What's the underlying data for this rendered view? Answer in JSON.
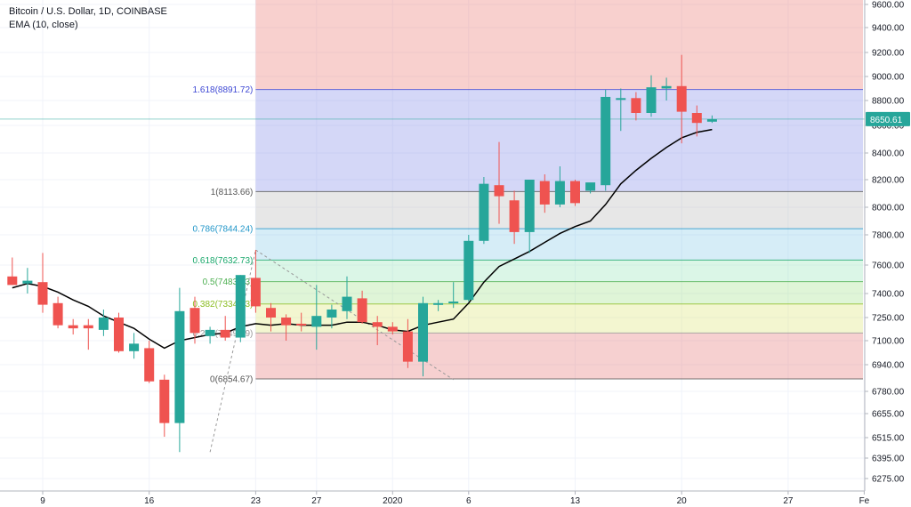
{
  "header": {
    "symbol": "Bitcoin / U.S. Dollar, 1D, COINBASE",
    "indicator": "EMA (10, close)"
  },
  "chart_data": {
    "type": "candlestick",
    "yaxis": {
      "ticks": [
        9600,
        9400,
        9200,
        9000,
        8800,
        8600,
        8400,
        8200,
        8000,
        7800,
        7600,
        7400,
        7250,
        7100,
        6940,
        6780,
        6655,
        6515,
        6395,
        6275
      ],
      "tick_labels": [
        "9600.00",
        "9400.00",
        "9200.00",
        "9000.00",
        "8800.00",
        "8600.00",
        "8400.00",
        "8200.00",
        "8000.00",
        "7800.00",
        "7600.00",
        "7400.00",
        "7250.00",
        "7100.00",
        "6940.00",
        "6780.00",
        "6655.00",
        "6515.00",
        "6395.00",
        "6275.00"
      ]
    },
    "xaxis": {
      "tick_labels": [
        {
          "label": "9",
          "day": 0
        },
        {
          "label": "16",
          "day": 7
        },
        {
          "label": "23",
          "day": 14
        },
        {
          "label": "27",
          "day": 18
        },
        {
          "label": "2020",
          "day": 23
        },
        {
          "label": "6",
          "day": 28
        },
        {
          "label": "13",
          "day": 35
        },
        {
          "label": "20",
          "day": 42
        },
        {
          "label": "27",
          "day": 49
        },
        {
          "label": "Fe",
          "day": 54
        }
      ]
    },
    "candles": [
      {
        "o": 7520,
        "h": 7650,
        "l": 7460,
        "c": 7460
      },
      {
        "o": 7470,
        "h": 7580,
        "l": 7400,
        "c": 7490
      },
      {
        "o": 7480,
        "h": 7680,
        "l": 7280,
        "c": 7330
      },
      {
        "o": 7340,
        "h": 7380,
        "l": 7180,
        "c": 7200
      },
      {
        "o": 7200,
        "h": 7240,
        "l": 7140,
        "c": 7180
      },
      {
        "o": 7200,
        "h": 7240,
        "l": 7040,
        "c": 7180
      },
      {
        "o": 7170,
        "h": 7300,
        "l": 7130,
        "c": 7250
      },
      {
        "o": 7250,
        "h": 7280,
        "l": 7020,
        "c": 7030
      },
      {
        "o": 7030,
        "h": 7150,
        "l": 6980,
        "c": 7080
      },
      {
        "o": 7050,
        "h": 7100,
        "l": 6830,
        "c": 6840
      },
      {
        "o": 6850,
        "h": 6880,
        "l": 6520,
        "c": 6600
      },
      {
        "o": 6600,
        "h": 7440,
        "l": 6430,
        "c": 7290
      },
      {
        "o": 7310,
        "h": 7380,
        "l": 7080,
        "c": 7150
      },
      {
        "o": 7130,
        "h": 7190,
        "l": 7080,
        "c": 7170
      },
      {
        "o": 7170,
        "h": 7260,
        "l": 7100,
        "c": 7120
      },
      {
        "o": 7120,
        "h": 7530,
        "l": 7090,
        "c": 7530
      },
      {
        "o": 7510,
        "h": 7700,
        "l": 7280,
        "c": 7320
      },
      {
        "o": 7310,
        "h": 7340,
        "l": 7160,
        "c": 7250
      },
      {
        "o": 7250,
        "h": 7270,
        "l": 7100,
        "c": 7200
      },
      {
        "o": 7210,
        "h": 7280,
        "l": 7160,
        "c": 7200
      },
      {
        "o": 7190,
        "h": 7460,
        "l": 7040,
        "c": 7260
      },
      {
        "o": 7250,
        "h": 7330,
        "l": 7180,
        "c": 7300
      },
      {
        "o": 7290,
        "h": 7520,
        "l": 7240,
        "c": 7380
      },
      {
        "o": 7370,
        "h": 7420,
        "l": 7210,
        "c": 7220
      },
      {
        "o": 7220,
        "h": 7260,
        "l": 7070,
        "c": 7190
      },
      {
        "o": 7190,
        "h": 7220,
        "l": 7140,
        "c": 7160
      },
      {
        "o": 7160,
        "h": 7240,
        "l": 6920,
        "c": 6960
      },
      {
        "o": 6960,
        "h": 7380,
        "l": 6870,
        "c": 7340
      },
      {
        "o": 7330,
        "h": 7360,
        "l": 7290,
        "c": 7340
      },
      {
        "o": 7340,
        "h": 7480,
        "l": 7310,
        "c": 7350
      },
      {
        "o": 7360,
        "h": 7800,
        "l": 7350,
        "c": 7760
      },
      {
        "o": 7760,
        "h": 8220,
        "l": 7740,
        "c": 8170
      },
      {
        "o": 8160,
        "h": 8480,
        "l": 7880,
        "c": 8080
      },
      {
        "o": 8050,
        "h": 8120,
        "l": 7740,
        "c": 7820
      },
      {
        "o": 7820,
        "h": 8200,
        "l": 7680,
        "c": 8200
      },
      {
        "o": 8190,
        "h": 8240,
        "l": 7960,
        "c": 8020
      },
      {
        "o": 8020,
        "h": 8300,
        "l": 8000,
        "c": 8190
      },
      {
        "o": 8190,
        "h": 8200,
        "l": 8010,
        "c": 8030
      },
      {
        "o": 8120,
        "h": 8170,
        "l": 8100,
        "c": 8180
      },
      {
        "o": 8160,
        "h": 8890,
        "l": 8120,
        "c": 8830
      },
      {
        "o": 8820,
        "h": 8900,
        "l": 8560,
        "c": 8820
      },
      {
        "o": 8820,
        "h": 8870,
        "l": 8640,
        "c": 8700
      },
      {
        "o": 8700,
        "h": 9010,
        "l": 8670,
        "c": 8910
      },
      {
        "o": 8900,
        "h": 8990,
        "l": 8800,
        "c": 8920
      },
      {
        "o": 8920,
        "h": 9180,
        "l": 8470,
        "c": 8710
      },
      {
        "o": 8700,
        "h": 8760,
        "l": 8520,
        "c": 8620
      },
      {
        "o": 8630,
        "h": 8680,
        "l": 8620,
        "c": 8650
      }
    ],
    "ema": [
      7440,
      7470,
      7450,
      7410,
      7360,
      7320,
      7260,
      7220,
      7180,
      7110,
      7050,
      7100,
      7120,
      7140,
      7150,
      7190,
      7210,
      7200,
      7210,
      7200,
      7200,
      7200,
      7220,
      7220,
      7200,
      7170,
      7160,
      7200,
      7220,
      7240,
      7340,
      7480,
      7590,
      7640,
      7690,
      7750,
      7810,
      7860,
      7900,
      8020,
      8170,
      8270,
      8360,
      8440,
      8510,
      8550,
      8570
    ],
    "current_price": 8650.61,
    "current_price_label": "8650.61",
    "fib": {
      "levels": [
        {
          "label": "1.618(8891.72)",
          "value": 8891.72,
          "color": "#3e48d4",
          "fill": "rgba(120,130,230,0.32)"
        },
        {
          "label": "1(8113.66)",
          "value": 8113.66,
          "color": "#555555",
          "fill": "rgba(170,170,170,0.28)"
        },
        {
          "label": "0.786(7844.24)",
          "value": 7844.24,
          "color": "#2196c9",
          "fill": "rgba(120,195,230,0.30)"
        },
        {
          "label": "0.618(7632.73)",
          "value": 7632.73,
          "color": "#1aa86c",
          "fill": "rgba(110,220,160,0.25)"
        },
        {
          "label": "0.5(7483.73)",
          "value": 7483.73,
          "color": "#4caf50",
          "fill": "rgba(140,220,110,0.28)"
        },
        {
          "label": "0.382(7334.73)",
          "value": 7334.73,
          "color": "#8bbd22",
          "fill": "rgba(220,230,120,0.35)"
        },
        {
          "label": "0.236(7149.79)",
          "value": 7149.79,
          "color": "#999999",
          "fill": "rgba(230,120,120,0.35)"
        },
        {
          "label": "0(6854.67)",
          "value": 6854.67,
          "color": "#555555",
          "fill": null
        }
      ],
      "top_fill": "rgba(235,120,115,0.35)",
      "start_day": 14,
      "end_day": 57
    },
    "colors": {
      "up": "#26a69a",
      "down": "#ef5350",
      "ema": "#000000",
      "grid": "#f0f3fa"
    }
  }
}
